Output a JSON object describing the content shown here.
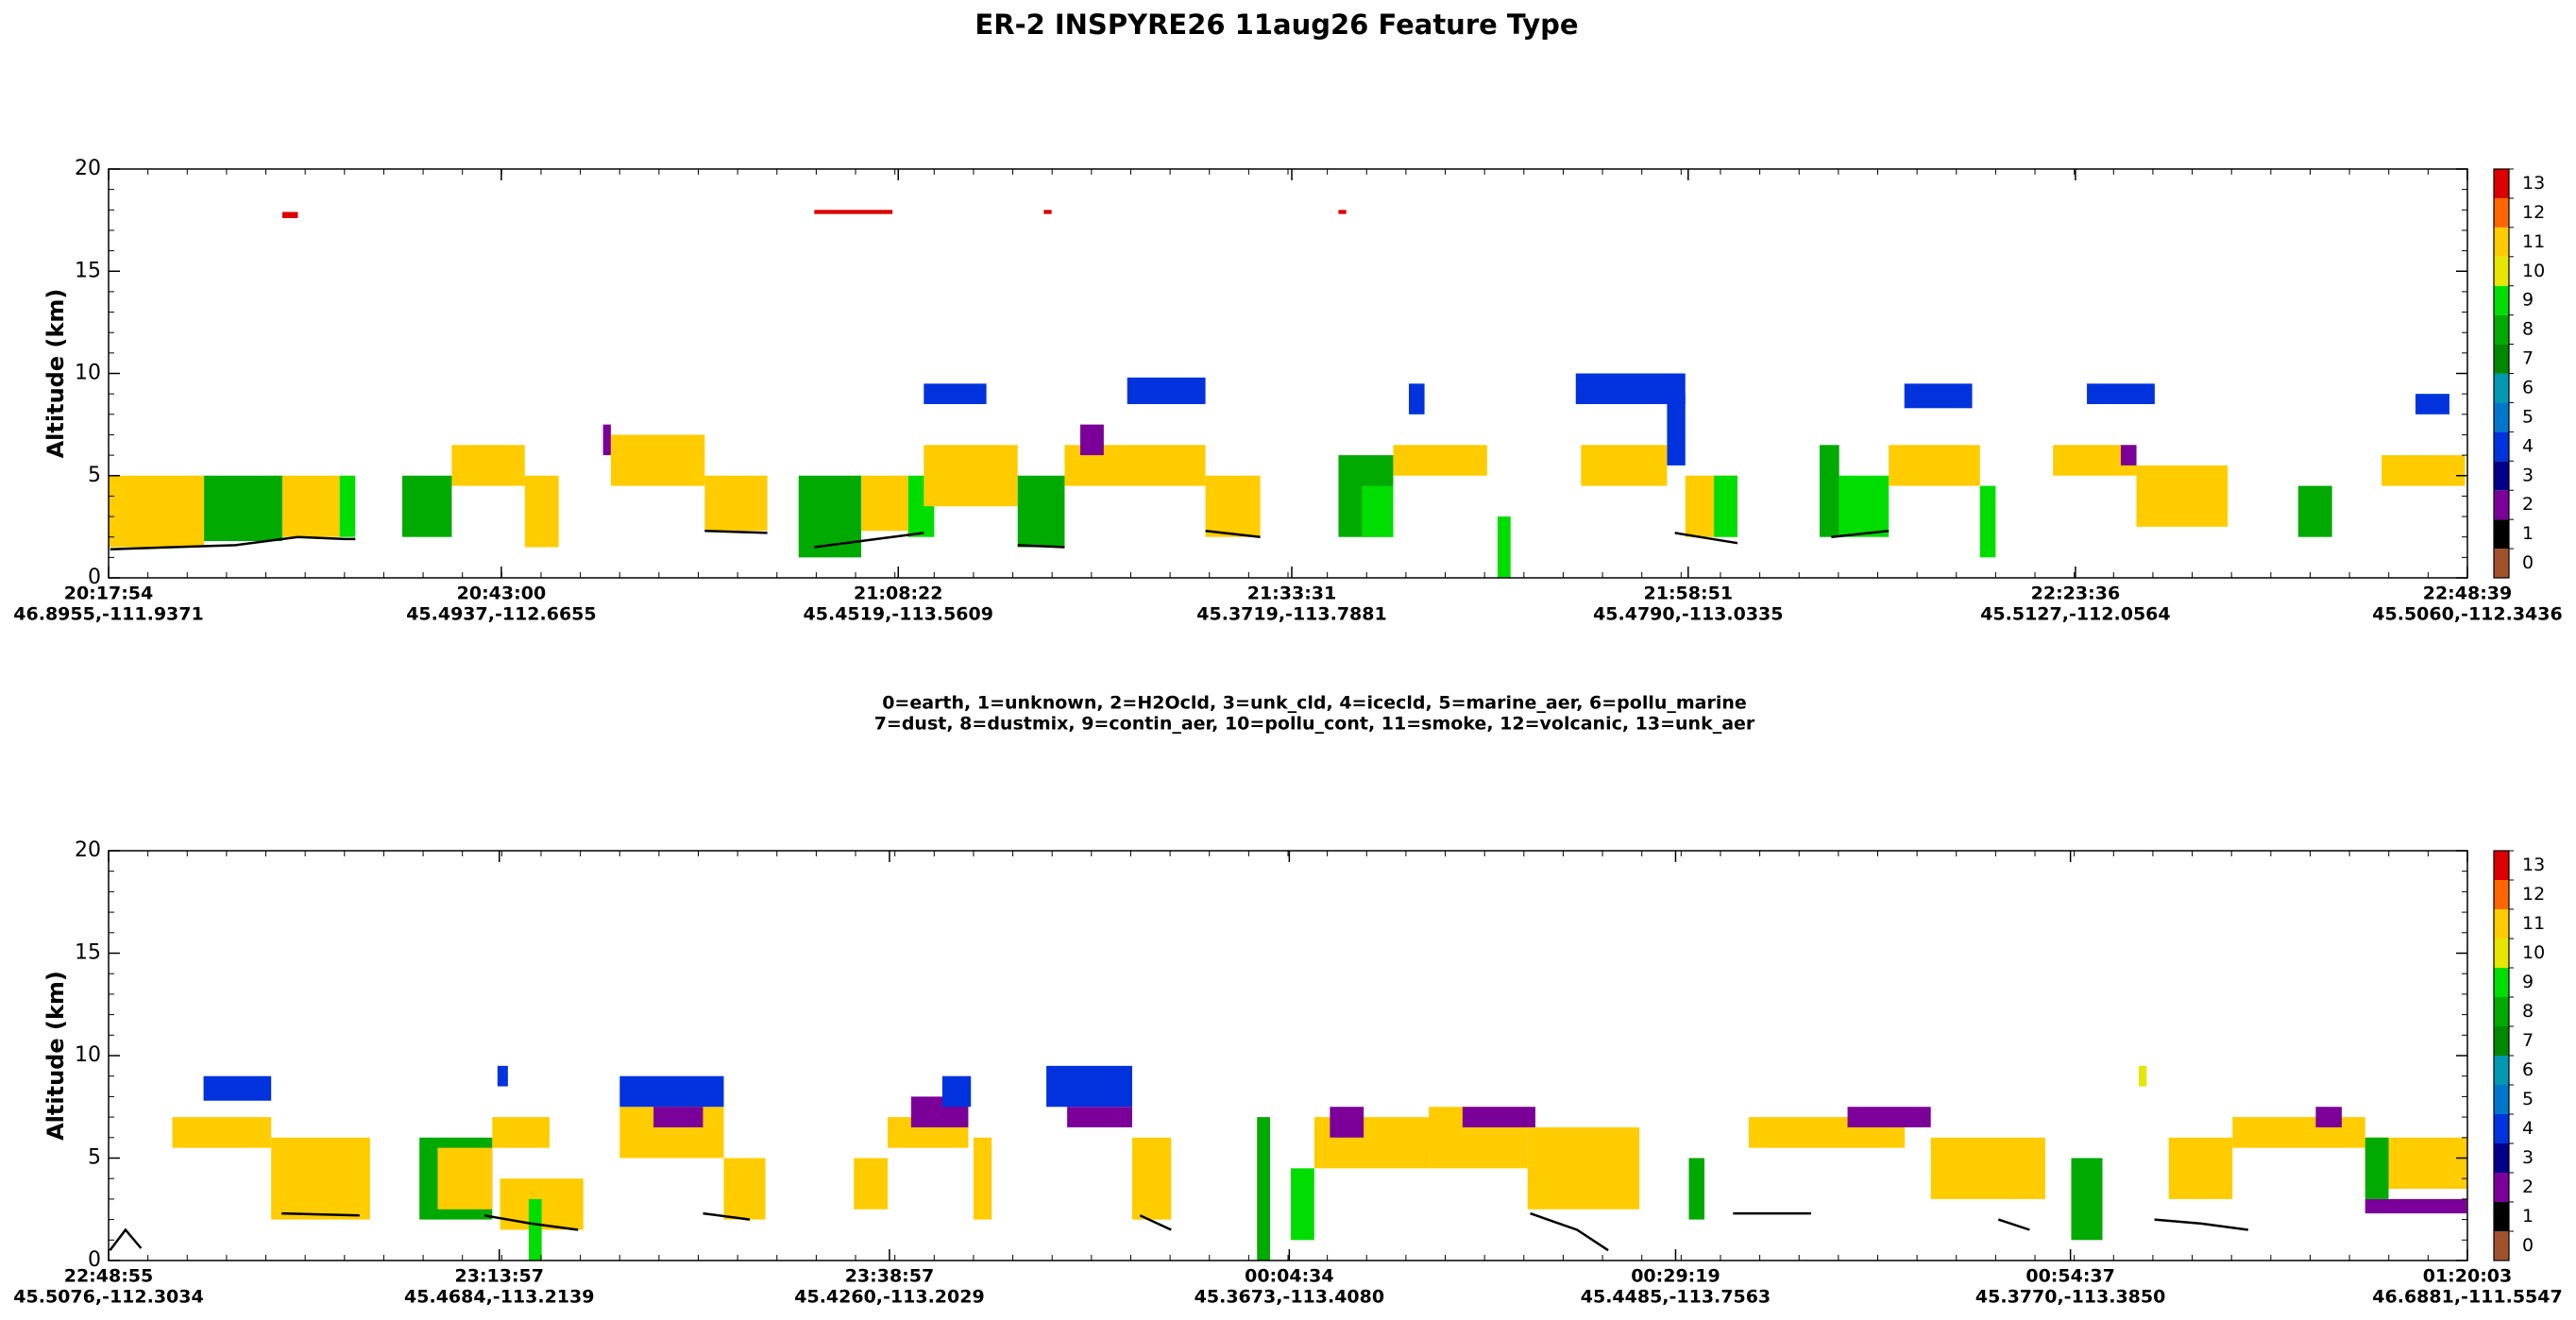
{
  "title": "ER-2  INSPYRE26  11aug26  Feature Type",
  "legend_lines": [
    "0=earth, 1=unknown, 2=H2Ocld, 3=unk_cld, 4=icecld, 5=marine_aer, 6=pollu_marine",
    "7=dust, 8=dustmix, 9=contin_aer, 10=pollu_cont, 11=smoke, 12=volcanic, 13=unk_aer"
  ],
  "chart_data": [
    {
      "type": "curtain",
      "y_label": "Altitude (km)",
      "xlim": [
        "20:17:54",
        "22:48:39"
      ],
      "xticks": [
        "20:17:54",
        "20:43:00",
        "21:08:22",
        "21:33:31",
        "21:58:51",
        "22:23:36",
        "22:48:39"
      ],
      "xtick_coords": [
        "46.8955,-111.9371",
        "45.4937,-112.6655",
        "45.4519,-113.5609",
        "45.3719,-113.7881",
        "45.4790,-113.0335",
        "45.5127,-112.0564",
        "45.5060,-112.3436"
      ],
      "ylim": [
        0,
        20
      ],
      "yticks": [
        0,
        5,
        10,
        15,
        20
      ],
      "colorbar": {
        "colors": [
          "#a0522d",
          "#000000",
          "#7b0099",
          "#00008b",
          "#0033dd",
          "#0077cc",
          "#0099b0",
          "#008800",
          "#00aa00",
          "#00dd00",
          "#e6e600",
          "#ffcc00",
          "#ff6600",
          "#dd0000"
        ],
        "ticks": [
          0,
          1,
          2,
          3,
          4,
          5,
          6,
          7,
          8,
          9,
          10,
          11,
          12,
          13
        ]
      },
      "blocks": [
        {
          "t0": "20:17:54",
          "t1": "20:24:00",
          "z0": 1.5,
          "z1": 5,
          "class": 11
        },
        {
          "t0": "20:24:00",
          "t1": "20:29:00",
          "z0": 1.8,
          "z1": 5,
          "class": 8
        },
        {
          "t0": "20:29:00",
          "t1": "20:32:40",
          "z0": 2,
          "z1": 5,
          "class": 11
        },
        {
          "t0": "20:32:40",
          "t1": "20:33:40",
          "z0": 2,
          "z1": 5,
          "class": 9
        },
        {
          "t0": "20:36:40",
          "t1": "20:39:50",
          "z0": 2,
          "z1": 5,
          "class": 8
        },
        {
          "t0": "20:39:50",
          "t1": "20:44:30",
          "z0": 4.5,
          "z1": 6.5,
          "class": 11
        },
        {
          "t0": "20:44:30",
          "t1": "20:46:40",
          "z0": 1.5,
          "z1": 5,
          "class": 11
        },
        {
          "t0": "20:49:30",
          "t1": "20:50:00",
          "z0": 6,
          "z1": 7.5,
          "class": 2
        },
        {
          "t0": "20:50:00",
          "t1": "20:56:00",
          "z0": 4.5,
          "z1": 7,
          "class": 11
        },
        {
          "t0": "20:56:00",
          "t1": "21:00:00",
          "z0": 2.3,
          "z1": 5,
          "class": 11
        },
        {
          "t0": "21:02:00",
          "t1": "21:06:00",
          "z0": 1,
          "z1": 5,
          "class": 8
        },
        {
          "t0": "21:06:00",
          "t1": "21:09:00",
          "z0": 2.3,
          "z1": 5,
          "class": 11
        },
        {
          "t0": "21:09:00",
          "t1": "21:10:40",
          "z0": 2,
          "z1": 5,
          "class": 9
        },
        {
          "t0": "21:10:00",
          "t1": "21:16:00",
          "z0": 3.5,
          "z1": 6.5,
          "class": 11
        },
        {
          "t0": "21:10:00",
          "t1": "21:14:00",
          "z0": 8.5,
          "z1": 9.5,
          "class": 4
        },
        {
          "t0": "21:16:00",
          "t1": "21:19:00",
          "z0": 1.5,
          "z1": 5,
          "class": 8
        },
        {
          "t0": "21:19:00",
          "t1": "21:28:00",
          "z0": 4.5,
          "z1": 6.5,
          "class": 11
        },
        {
          "t0": "21:20:00",
          "t1": "21:21:30",
          "z0": 6,
          "z1": 7.5,
          "class": 2
        },
        {
          "t0": "21:23:00",
          "t1": "21:28:00",
          "z0": 8.5,
          "z1": 9.8,
          "class": 4
        },
        {
          "t0": "21:28:00",
          "t1": "21:31:30",
          "z0": 2,
          "z1": 5,
          "class": 11
        },
        {
          "t0": "21:36:30",
          "t1": "21:40:00",
          "z0": 2,
          "z1": 6,
          "class": 8
        },
        {
          "t0": "21:38:00",
          "t1": "21:40:00",
          "z0": 2,
          "z1": 4.5,
          "class": 9
        },
        {
          "t0": "21:40:00",
          "t1": "21:46:00",
          "z0": 5,
          "z1": 6.5,
          "class": 11
        },
        {
          "t0": "21:41:00",
          "t1": "21:42:00",
          "z0": 8,
          "z1": 9.5,
          "class": 4
        },
        {
          "t0": "21:46:40",
          "t1": "21:47:30",
          "z0": 0,
          "z1": 3,
          "class": 9
        },
        {
          "t0": "21:51:40",
          "t1": "21:58:40",
          "z0": 8.5,
          "z1": 10,
          "class": 4
        },
        {
          "t0": "21:57:30",
          "t1": "21:58:40",
          "z0": 5.5,
          "z1": 9,
          "class": 4
        },
        {
          "t0": "21:52:00",
          "t1": "21:57:30",
          "z0": 4.5,
          "z1": 6.5,
          "class": 11
        },
        {
          "t0": "21:58:40",
          "t1": "22:02:00",
          "z0": 2,
          "z1": 5,
          "class": 11
        },
        {
          "t0": "22:00:30",
          "t1": "22:02:00",
          "z0": 2,
          "z1": 5,
          "class": 9
        },
        {
          "t0": "22:07:15",
          "t1": "22:08:30",
          "z0": 2,
          "z1": 6.5,
          "class": 8
        },
        {
          "t0": "22:08:30",
          "t1": "22:11:40",
          "z0": 2,
          "z1": 5,
          "class": 9
        },
        {
          "t0": "22:11:40",
          "t1": "22:17:30",
          "z0": 4.5,
          "z1": 6.5,
          "class": 11
        },
        {
          "t0": "22:12:40",
          "t1": "22:17:00",
          "z0": 8.3,
          "z1": 9.5,
          "class": 4
        },
        {
          "t0": "22:17:30",
          "t1": "22:18:30",
          "z0": 1,
          "z1": 4.5,
          "class": 9
        },
        {
          "t0": "22:22:10",
          "t1": "22:27:30",
          "z0": 5,
          "z1": 6.5,
          "class": 11
        },
        {
          "t0": "22:24:20",
          "t1": "22:28:40",
          "z0": 8.5,
          "z1": 9.5,
          "class": 4
        },
        {
          "t0": "22:26:30",
          "t1": "22:27:30",
          "z0": 5.5,
          "z1": 6.5,
          "class": 2
        },
        {
          "t0": "22:27:30",
          "t1": "22:33:20",
          "z0": 2.5,
          "z1": 5.5,
          "class": 11
        },
        {
          "t0": "22:37:50",
          "t1": "22:40:00",
          "z0": 2,
          "z1": 4.5,
          "class": 8
        },
        {
          "t0": "22:43:10",
          "t1": "22:48:30",
          "z0": 4.5,
          "z1": 6,
          "class": 11
        },
        {
          "t0": "22:45:20",
          "t1": "22:47:30",
          "z0": 8,
          "z1": 9,
          "class": 4
        },
        {
          "t0": "20:29:00",
          "t1": "20:30:00",
          "z0": 17.6,
          "z1": 17.9,
          "class": 13
        },
        {
          "t0": "21:03:00",
          "t1": "21:08:00",
          "z0": 17.8,
          "z1": 18,
          "class": 13
        },
        {
          "t0": "21:17:40",
          "t1": "21:18:10",
          "z0": 17.8,
          "z1": 18,
          "class": 13
        },
        {
          "t0": "21:36:30",
          "t1": "21:37:00",
          "z0": 17.8,
          "z1": 18,
          "class": 13
        }
      ],
      "surface": {
        "color": "#000000",
        "x": [
          "20:18:00",
          "20:22:00",
          "20:26:00",
          "20:30:00",
          "20:33:00",
          "20:33:40",
          "20:45:00",
          "20:56:00",
          "21:00:00",
          "21:01:00",
          "21:03:00",
          "21:06:00",
          "21:10:00",
          "21:12:00",
          "21:16:00",
          "21:19:00",
          "21:22:00",
          "21:28:00",
          "21:31:30",
          "21:45:00",
          "21:58:00",
          "22:02:00",
          "22:04:00",
          "22:08:00",
          "22:11:40"
        ],
        "values": [
          1.4,
          1.5,
          1.6,
          2.0,
          1.9,
          1.9,
          null,
          2.3,
          2.2,
          null,
          1.5,
          1.8,
          2.2,
          null,
          1.6,
          1.5,
          null,
          2.3,
          2.0,
          null,
          2.2,
          1.7,
          null,
          2.0,
          2.3
        ]
      }
    },
    {
      "type": "curtain",
      "y_label": "Altitude (km)",
      "xlim": [
        "22:48:55",
        "01:20:03"
      ],
      "xticks": [
        "22:48:55",
        "23:13:57",
        "23:38:57",
        "00:04:34",
        "00:29:19",
        "00:54:37",
        "01:20:03"
      ],
      "xtick_coords": [
        "45.5076,-112.3034",
        "45.4684,-113.2139",
        "45.4260,-113.2029",
        "45.3673,-113.4080",
        "45.4485,-113.7563",
        "45.3770,-113.3850",
        "46.6881,-111.5547"
      ],
      "ylim": [
        0,
        20
      ],
      "yticks": [
        0,
        5,
        10,
        15,
        20
      ],
      "colorbar": {
        "colors": [
          "#a0522d",
          "#000000",
          "#7b0099",
          "#00008b",
          "#0033dd",
          "#0077cc",
          "#0099b0",
          "#008800",
          "#00aa00",
          "#00dd00",
          "#e6e600",
          "#ffcc00",
          "#ff6600",
          "#dd0000"
        ],
        "ticks": [
          0,
          1,
          2,
          3,
          4,
          5,
          6,
          7,
          8,
          9,
          10,
          11,
          12,
          13
        ]
      },
      "blocks": [
        {
          "t0": "22:53:00",
          "t1": "22:59:20",
          "z0": 5.5,
          "z1": 7,
          "class": 11
        },
        {
          "t0": "22:55:00",
          "t1": "22:59:20",
          "z0": 7.8,
          "z1": 9,
          "class": 4
        },
        {
          "t0": "22:59:20",
          "t1": "23:05:40",
          "z0": 2,
          "z1": 6,
          "class": 11
        },
        {
          "t0": "23:08:50",
          "t1": "23:13:30",
          "z0": 2,
          "z1": 6,
          "class": 8
        },
        {
          "t0": "23:10:00",
          "t1": "23:13:30",
          "z0": 2.5,
          "z1": 5.5,
          "class": 11
        },
        {
          "t0": "23:13:30",
          "t1": "23:17:10",
          "z0": 5.5,
          "z1": 7,
          "class": 11
        },
        {
          "t0": "23:13:50",
          "t1": "23:14:30",
          "z0": 8.5,
          "z1": 9.5,
          "class": 4
        },
        {
          "t0": "23:14:00",
          "t1": "23:19:20",
          "z0": 1.5,
          "z1": 4,
          "class": 11
        },
        {
          "t0": "23:15:50",
          "t1": "23:16:40",
          "z0": 0,
          "z1": 3,
          "class": 9
        },
        {
          "t0": "23:21:40",
          "t1": "23:28:20",
          "z0": 5,
          "z1": 7.5,
          "class": 11
        },
        {
          "t0": "23:21:40",
          "t1": "23:28:20",
          "z0": 7.5,
          "z1": 9,
          "class": 4
        },
        {
          "t0": "23:23:50",
          "t1": "23:27:00",
          "z0": 6.5,
          "z1": 7.5,
          "class": 2
        },
        {
          "t0": "23:28:20",
          "t1": "23:31:00",
          "z0": 2,
          "z1": 5,
          "class": 11
        },
        {
          "t0": "23:36:40",
          "t1": "23:38:50",
          "z0": 2.5,
          "z1": 5,
          "class": 11
        },
        {
          "t0": "23:38:50",
          "t1": "23:44:00",
          "z0": 5.5,
          "z1": 7,
          "class": 11
        },
        {
          "t0": "23:40:20",
          "t1": "23:44:00",
          "z0": 6.5,
          "z1": 8,
          "class": 2
        },
        {
          "t0": "23:42:20",
          "t1": "23:44:10",
          "z0": 7.5,
          "z1": 9,
          "class": 4
        },
        {
          "t0": "23:44:20",
          "t1": "23:45:30",
          "z0": 2,
          "z1": 6,
          "class": 11
        },
        {
          "t0": "23:49:00",
          "t1": "23:54:30",
          "z0": 7.5,
          "z1": 9.5,
          "class": 4
        },
        {
          "t0": "23:50:20",
          "t1": "23:54:30",
          "z0": 6.5,
          "z1": 7.5,
          "class": 2
        },
        {
          "t0": "23:54:30",
          "t1": "23:57:00",
          "z0": 2,
          "z1": 6,
          "class": 11
        },
        {
          "t0": "00:02:30",
          "t1": "00:03:20",
          "z0": 0,
          "z1": 7,
          "class": 8
        },
        {
          "t0": "00:04:40",
          "t1": "00:06:10",
          "z0": 1,
          "z1": 4.5,
          "class": 9
        },
        {
          "t0": "00:06:10",
          "t1": "00:13:30",
          "z0": 4.5,
          "z1": 7,
          "class": 11
        },
        {
          "t0": "00:07:10",
          "t1": "00:09:20",
          "z0": 6,
          "z1": 7.5,
          "class": 2
        },
        {
          "t0": "00:13:30",
          "t1": "00:19:50",
          "z0": 4.5,
          "z1": 7.5,
          "class": 11
        },
        {
          "t0": "00:15:40",
          "t1": "00:20:20",
          "z0": 6.5,
          "z1": 7.5,
          "class": 2
        },
        {
          "t0": "00:19:50",
          "t1": "00:27:00",
          "z0": 2.5,
          "z1": 6.5,
          "class": 11
        },
        {
          "t0": "00:30:10",
          "t1": "00:31:10",
          "z0": 2,
          "z1": 5,
          "class": 8
        },
        {
          "t0": "00:34:00",
          "t1": "00:44:00",
          "z0": 5.5,
          "z1": 7,
          "class": 11
        },
        {
          "t0": "00:40:20",
          "t1": "00:45:40",
          "z0": 6.5,
          "z1": 7.5,
          "class": 2
        },
        {
          "t0": "00:45:40",
          "t1": "00:53:00",
          "z0": 3,
          "z1": 6,
          "class": 11
        },
        {
          "t0": "00:54:40",
          "t1": "00:56:40",
          "z0": 1,
          "z1": 5,
          "class": 8
        },
        {
          "t0": "00:59:00",
          "t1": "00:59:30",
          "z0": 8.5,
          "z1": 9.5,
          "class": 10
        },
        {
          "t0": "01:00:55",
          "t1": "01:05:00",
          "z0": 3,
          "z1": 6,
          "class": 11
        },
        {
          "t0": "01:05:00",
          "t1": "01:13:30",
          "z0": 5.5,
          "z1": 7,
          "class": 11
        },
        {
          "t0": "01:10:20",
          "t1": "01:12:00",
          "z0": 6.5,
          "z1": 7.5,
          "class": 2
        },
        {
          "t0": "01:13:30",
          "t1": "01:20:00",
          "z0": 3.5,
          "z1": 6,
          "class": 11
        },
        {
          "t0": "01:13:30",
          "t1": "01:20:00",
          "z0": 2.3,
          "z1": 3,
          "class": 2
        },
        {
          "t0": "01:13:30",
          "t1": "01:15:00",
          "z0": 3,
          "z1": 6,
          "class": 8
        }
      ],
      "surface": {
        "color": "#000000",
        "x": [
          "22:49:00",
          "22:50:00",
          "22:51:00",
          "22:52:00",
          "23:00:00",
          "23:05:00",
          "23:07:00",
          "23:13:00",
          "23:16:00",
          "23:19:00",
          "23:20:00",
          "23:27:00",
          "23:30:00",
          "23:32:00",
          "23:55:00",
          "23:57:00",
          "00:00:00",
          "00:20:00",
          "00:23:00",
          "00:25:00",
          "00:27:00",
          "00:33:00",
          "00:38:00",
          "00:40:00",
          "00:50:00",
          "00:52:00",
          "00:55:00",
          "01:00:00",
          "01:03:00",
          "01:06:00"
        ],
        "values": [
          0.5,
          1.5,
          0.6,
          null,
          2.3,
          2.2,
          null,
          2.2,
          1.8,
          1.5,
          null,
          2.3,
          2.0,
          null,
          2.2,
          1.5,
          null,
          2.3,
          1.5,
          0.5,
          null,
          2.3,
          2.3,
          null,
          2.0,
          1.5,
          null,
          2.0,
          1.8,
          1.5
        ]
      }
    }
  ]
}
